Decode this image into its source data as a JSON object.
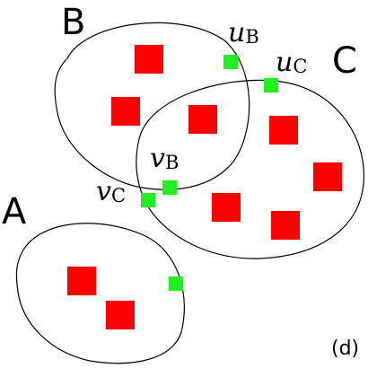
{
  "sets": {
    "a": {
      "label": "A"
    },
    "b": {
      "label": "B"
    },
    "c": {
      "label": "C"
    }
  },
  "boundary_nodes": {
    "u_b": {
      "letter": "u",
      "subscript": "B"
    },
    "u_c": {
      "letter": "u",
      "subscript": "C"
    },
    "v_b": {
      "letter": "v",
      "subscript": "B"
    },
    "v_c": {
      "letter": "v",
      "subscript": "C"
    }
  },
  "panel_label": "(d)",
  "colors": {
    "inner_node": "#ff0000",
    "boundary_node": "#22ee22",
    "outline": "#000000"
  }
}
